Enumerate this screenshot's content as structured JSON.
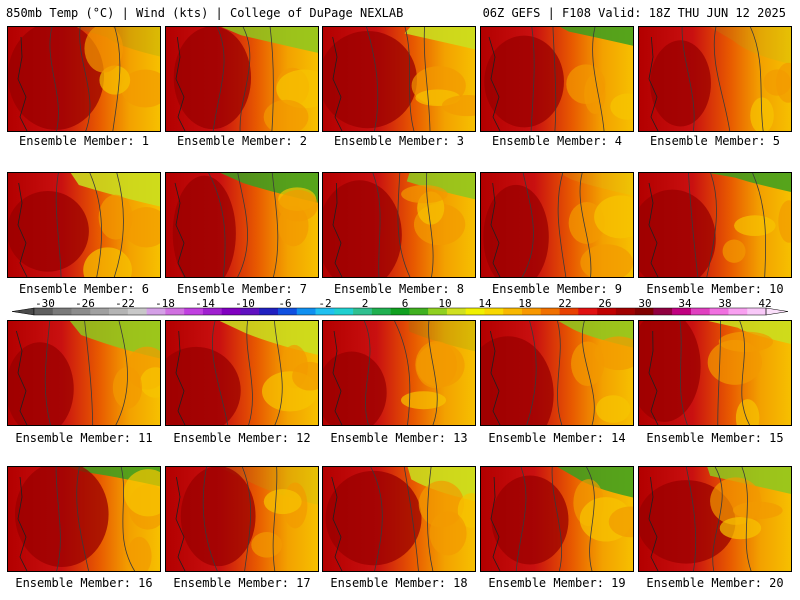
{
  "header": {
    "left": "850mb Temp (°C) | Wind (kts) | College of DuPage NEXLAB",
    "right": "06Z GEFS | F108 Valid: 18Z THU JUN 12 2025"
  },
  "members": [
    {
      "label": "Ensemble Member: 1"
    },
    {
      "label": "Ensemble Member: 2"
    },
    {
      "label": "Ensemble Member: 3"
    },
    {
      "label": "Ensemble Member: 4"
    },
    {
      "label": "Ensemble Member: 5"
    },
    {
      "label": "Ensemble Member: 6"
    },
    {
      "label": "Ensemble Member: 7"
    },
    {
      "label": "Ensemble Member: 8"
    },
    {
      "label": "Ensemble Member: 9"
    },
    {
      "label": "Ensemble Member: 10"
    },
    {
      "label": "Ensemble Member: 11"
    },
    {
      "label": "Ensemble Member: 12"
    },
    {
      "label": "Ensemble Member: 13"
    },
    {
      "label": "Ensemble Member: 14"
    },
    {
      "label": "Ensemble Member: 15"
    },
    {
      "label": "Ensemble Member: 16"
    },
    {
      "label": "Ensemble Member: 17"
    },
    {
      "label": "Ensemble Member: 18"
    },
    {
      "label": "Ensemble Member: 19"
    },
    {
      "label": "Ensemble Member: 20"
    }
  ],
  "colorbar": {
    "labels": [
      "-30",
      "-26",
      "-22",
      "-18",
      "-14",
      "-10",
      "-6",
      "-2",
      "2",
      "6",
      "10",
      "14",
      "18",
      "22",
      "26",
      "30",
      "34",
      "38",
      "42"
    ],
    "colors": [
      "#5f5f5f",
      "#7a7a7a",
      "#8c8c8c",
      "#a0a0a0",
      "#b4b4b4",
      "#c8c8c8",
      "#d4a0e6",
      "#d070e0",
      "#c040e0",
      "#a020d0",
      "#8000c0",
      "#6010c0",
      "#2020c0",
      "#1050e0",
      "#1090f0",
      "#20c0f0",
      "#20d0d0",
      "#30c090",
      "#20b050",
      "#10a020",
      "#40b020",
      "#90d020",
      "#d0e020",
      "#f0f000",
      "#f8d800",
      "#f8b800",
      "#f89800",
      "#f07000",
      "#e84000",
      "#e01010",
      "#c00000",
      "#a00000",
      "#800000",
      "#900040",
      "#c00080",
      "#e040c0",
      "#f070e0",
      "#f8a0f0",
      "#f8c8f8"
    ]
  }
}
